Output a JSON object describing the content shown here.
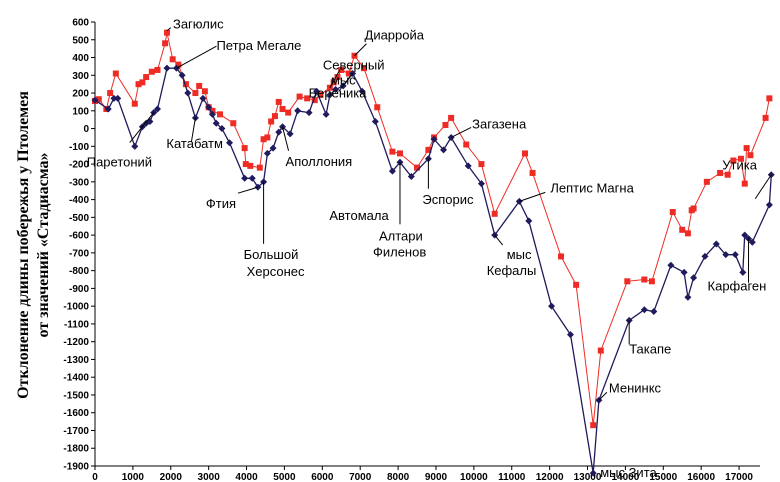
{
  "chart_data": {
    "type": "line",
    "title": "",
    "ylabel_lines": [
      "Отклонение длины побережья у Птолемея",
      "от значений «Стадиасма»"
    ],
    "xlabel": "",
    "xlim": [
      0,
      17500
    ],
    "ylim": [
      -1900,
      600
    ],
    "x_ticks": [
      "0",
      "1000",
      "2000",
      "3000",
      "4000",
      "5000",
      "6000",
      "7000",
      "8000",
      "9000",
      "10000",
      "11000",
      "12000",
      "13000",
      "14000",
      "15000",
      "16000",
      "17000"
    ],
    "y_ticks": [
      "600",
      "500",
      "400",
      "300",
      "200",
      "100",
      "0",
      "-100",
      "-200",
      "-300",
      "-400",
      "-500",
      "-600",
      "-700",
      "-800",
      "-900",
      "-1000",
      "-1100",
      "-1200",
      "-1300",
      "-1400",
      "-1500",
      "-1600",
      "-1700",
      "-1800",
      "-1900"
    ],
    "grid": false,
    "series": [
      {
        "name": "red",
        "color": "#ee2b24",
        "marker": "square",
        "points": [
          [
            0,
            155
          ],
          [
            100,
            165
          ],
          [
            300,
            110
          ],
          [
            400,
            200
          ],
          [
            550,
            310
          ],
          [
            1050,
            140
          ],
          [
            1150,
            250
          ],
          [
            1250,
            260
          ],
          [
            1350,
            290
          ],
          [
            1500,
            320
          ],
          [
            1650,
            330
          ],
          [
            1850,
            480
          ],
          [
            1900,
            540
          ],
          [
            2050,
            390
          ],
          [
            2200,
            360
          ],
          [
            2400,
            250
          ],
          [
            2650,
            200
          ],
          [
            2750,
            240
          ],
          [
            2900,
            210
          ],
          [
            3000,
            120
          ],
          [
            3100,
            100
          ],
          [
            3300,
            80
          ],
          [
            3650,
            30
          ],
          [
            3950,
            -110
          ],
          [
            3980,
            -200
          ],
          [
            4100,
            -210
          ],
          [
            4350,
            -220
          ],
          [
            4450,
            -60
          ],
          [
            4550,
            -50
          ],
          [
            4650,
            40
          ],
          [
            4750,
            70
          ],
          [
            4850,
            150
          ],
          [
            4950,
            110
          ],
          [
            5100,
            90
          ],
          [
            5400,
            180
          ],
          [
            5600,
            170
          ],
          [
            5800,
            160
          ],
          [
            5950,
            190
          ],
          [
            6200,
            230
          ],
          [
            6300,
            260
          ],
          [
            6400,
            290
          ],
          [
            6500,
            330
          ],
          [
            6700,
            310
          ],
          [
            6850,
            410
          ],
          [
            7100,
            340
          ],
          [
            7450,
            120
          ],
          [
            7850,
            -130
          ],
          [
            8050,
            -140
          ],
          [
            8500,
            -220
          ],
          [
            8800,
            -120
          ],
          [
            8950,
            -50
          ],
          [
            9250,
            20
          ],
          [
            9400,
            60
          ],
          [
            9800,
            -90
          ],
          [
            10200,
            -200
          ],
          [
            10550,
            -480
          ],
          [
            11350,
            -140
          ],
          [
            11550,
            -250
          ],
          [
            12300,
            -720
          ],
          [
            12700,
            -880
          ],
          [
            13150,
            -1670
          ],
          [
            13350,
            -1250
          ],
          [
            14050,
            -860
          ],
          [
            14500,
            -850
          ],
          [
            14700,
            -860
          ],
          [
            15250,
            -470
          ],
          [
            15500,
            -570
          ],
          [
            15650,
            -590
          ],
          [
            15750,
            -460
          ],
          [
            15800,
            -450
          ],
          [
            16150,
            -300
          ],
          [
            16500,
            -250
          ],
          [
            16700,
            -260
          ],
          [
            16850,
            -180
          ],
          [
            17050,
            -170
          ],
          [
            17150,
            -310
          ],
          [
            17200,
            -110
          ],
          [
            17300,
            -150
          ],
          [
            17700,
            60
          ],
          [
            17800,
            170
          ]
        ]
      },
      {
        "name": "blue",
        "color": "#1f1b5c",
        "marker": "diamond",
        "points": [
          [
            0,
            160
          ],
          [
            350,
            110
          ],
          [
            500,
            170
          ],
          [
            600,
            170
          ],
          [
            1050,
            -100
          ],
          [
            1250,
            10
          ],
          [
            1350,
            30
          ],
          [
            1450,
            40
          ],
          [
            1550,
            90
          ],
          [
            1650,
            110
          ],
          [
            1900,
            340
          ],
          [
            2150,
            340
          ],
          [
            2300,
            300
          ],
          [
            2450,
            200
          ],
          [
            2650,
            60
          ],
          [
            2850,
            170
          ],
          [
            3000,
            120
          ],
          [
            3100,
            80
          ],
          [
            3200,
            30
          ],
          [
            3350,
            0
          ],
          [
            3550,
            -80
          ],
          [
            3950,
            -280
          ],
          [
            4150,
            -280
          ],
          [
            4300,
            -330
          ],
          [
            4450,
            -300
          ],
          [
            4550,
            -140
          ],
          [
            4700,
            -110
          ],
          [
            4850,
            -20
          ],
          [
            4950,
            10
          ],
          [
            5150,
            -30
          ],
          [
            5350,
            100
          ],
          [
            5650,
            90
          ],
          [
            5850,
            210
          ],
          [
            6100,
            80
          ],
          [
            6200,
            190
          ],
          [
            6350,
            220
          ],
          [
            6550,
            240
          ],
          [
            6800,
            310
          ],
          [
            7050,
            210
          ],
          [
            7400,
            40
          ],
          [
            7850,
            -240
          ],
          [
            8050,
            -190
          ],
          [
            8350,
            -270
          ],
          [
            8800,
            -170
          ],
          [
            8950,
            -60
          ],
          [
            9200,
            -120
          ],
          [
            9400,
            -50
          ],
          [
            9850,
            -210
          ],
          [
            10200,
            -310
          ],
          [
            10550,
            -600
          ],
          [
            11200,
            -410
          ],
          [
            11450,
            -520
          ],
          [
            12050,
            -1000
          ],
          [
            12550,
            -1160
          ],
          [
            13150,
            -1940
          ],
          [
            13300,
            -1530
          ],
          [
            14100,
            -1080
          ],
          [
            14500,
            -1020
          ],
          [
            14750,
            -1030
          ],
          [
            15200,
            -770
          ],
          [
            15550,
            -810
          ],
          [
            15650,
            -950
          ],
          [
            15800,
            -840
          ],
          [
            16100,
            -720
          ],
          [
            16400,
            -650
          ],
          [
            16650,
            -710
          ],
          [
            16900,
            -710
          ],
          [
            17100,
            -810
          ],
          [
            17150,
            -600
          ],
          [
            17250,
            -620
          ],
          [
            17350,
            -640
          ],
          [
            17800,
            -430
          ],
          [
            17850,
            -260
          ]
        ]
      }
    ],
    "annotations": [
      {
        "text": "Загюлис",
        "x": 1900,
        "y": 540
      },
      {
        "text": "Петра Мегале",
        "x": 2150,
        "y": 340
      },
      {
        "text": "Северный",
        "x": 6200,
        "y": 230
      },
      {
        "text": "мыс",
        "x": 6200,
        "y": 230
      },
      {
        "text": "Диарройа",
        "x": 6850,
        "y": 410
      },
      {
        "text": "Паретоний",
        "x": 1550,
        "y": 90
      },
      {
        "text": "Катабатм",
        "x": 2650,
        "y": 60
      },
      {
        "text": "Береника",
        "x": 6800,
        "y": 310
      },
      {
        "text": "Загазена",
        "x": 9400,
        "y": -50
      },
      {
        "text": "Аполлония",
        "x": 4950,
        "y": 10
      },
      {
        "text": "Фтия",
        "x": 4300,
        "y": -330
      },
      {
        "text": "Лептис Магна",
        "x": 11200,
        "y": -410
      },
      {
        "text": "Автомала",
        "x": 7850,
        "y": -240
      },
      {
        "text": "Эспорис",
        "x": 8800,
        "y": -170
      },
      {
        "text": "Большой",
        "x": 4450,
        "y": -300
      },
      {
        "text": "Херсонес",
        "x": 4450,
        "y": -300
      },
      {
        "text": "Алтари",
        "x": 8050,
        "y": -190
      },
      {
        "text": "Филенов",
        "x": 8050,
        "y": -190
      },
      {
        "text": "мыс",
        "x": 10550,
        "y": -600
      },
      {
        "text": "Кефалы",
        "x": 10550,
        "y": -600
      },
      {
        "text": "Утика",
        "x": 17850,
        "y": -260
      },
      {
        "text": "Такапе",
        "x": 14100,
        "y": -1080
      },
      {
        "text": "Карфаген",
        "x": 17250,
        "y": -620
      },
      {
        "text": "Менинкс",
        "x": 13300,
        "y": -1530
      },
      {
        "text": "мыс Зита",
        "x": 13150,
        "y": -1940
      }
    ]
  }
}
